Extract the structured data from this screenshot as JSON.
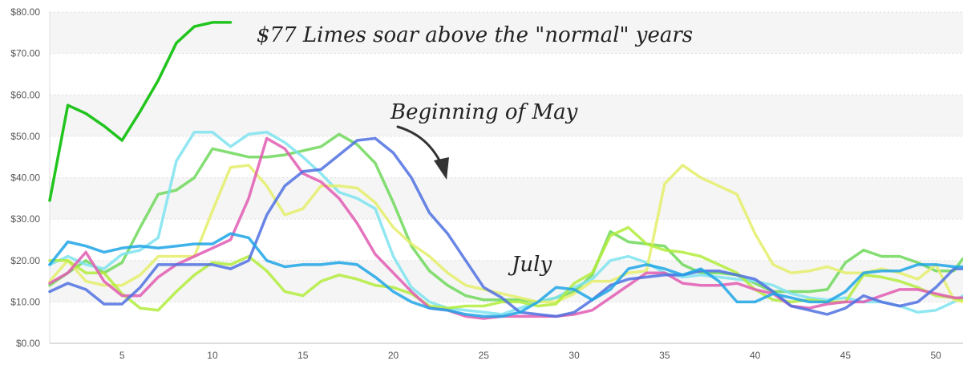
{
  "chart_data": {
    "type": "line",
    "title": "",
    "xlabel": "",
    "ylabel": "",
    "xlim": [
      1,
      51.5
    ],
    "ylim": [
      0,
      80
    ],
    "x_ticks": [
      5,
      10,
      15,
      20,
      25,
      30,
      35,
      40,
      45,
      50
    ],
    "y_ticks": [
      "$0.00",
      "$10.00",
      "$20.00",
      "$30.00",
      "$40.00",
      "$50.00",
      "$60.00",
      "$70.00",
      "$80.00"
    ],
    "grid": "horizontal dotted, alternating shaded bands",
    "legend": "none",
    "annotations": [
      {
        "text": "$77 Limes soar above the \"normal\" years",
        "x": 24,
        "y": 75
      },
      {
        "text": "Beginning of May",
        "x": 24,
        "y": 56
      },
      {
        "text": "July",
        "x": 28.5,
        "y": 18
      }
    ],
    "series": [
      {
        "color": "#22c41e",
        "x": [
          1,
          2,
          3,
          4,
          5,
          6,
          7,
          8,
          9,
          10,
          11
        ],
        "values": [
          34.5,
          57.5,
          55.5,
          52.5,
          49,
          56,
          63.5,
          72.5,
          76.5,
          77.5,
          77.5
        ]
      },
      {
        "color": "#6fd85a",
        "x": [
          1,
          2,
          3,
          4,
          5,
          6,
          7,
          8,
          9,
          10,
          11,
          12,
          13,
          14,
          15,
          16,
          17,
          18,
          19,
          20,
          21,
          22,
          23,
          24,
          25,
          26,
          27,
          28,
          29,
          30,
          31,
          32,
          33,
          34,
          35,
          36,
          37,
          38,
          39,
          40,
          41,
          42,
          43,
          44,
          45,
          46,
          47,
          48,
          49,
          50,
          51,
          51.5
        ],
        "values": [
          14,
          17,
          20,
          17,
          19.5,
          28,
          36,
          37,
          40,
          47,
          46,
          45,
          45,
          45.5,
          46.5,
          47.5,
          50.5,
          48,
          43.5,
          34,
          23.5,
          17.5,
          14,
          11.5,
          10.5,
          10.5,
          10.5,
          10,
          11,
          12.5,
          16.5,
          27,
          24.5,
          24,
          23.5,
          19,
          17,
          17,
          16.5,
          14.5,
          12.5,
          12.5,
          12.5,
          13,
          19.5,
          22.5,
          21,
          21,
          19.5,
          17.5,
          17.5,
          20.5
        ]
      },
      {
        "color": "#7ee3ee",
        "x": [
          1,
          2,
          3,
          4,
          5,
          6,
          7,
          8,
          9,
          10,
          11,
          12,
          13,
          14,
          15,
          16,
          17,
          18,
          19,
          20,
          21,
          22,
          23,
          24,
          25,
          26,
          27,
          28,
          29,
          30,
          31,
          32,
          33,
          34,
          35,
          36,
          37,
          38,
          39,
          40,
          41,
          42,
          43,
          44,
          45,
          46,
          47,
          48,
          49,
          50,
          51,
          51.5
        ],
        "values": [
          19,
          21,
          19,
          18,
          21.5,
          22.5,
          25.5,
          44,
          51,
          51,
          47.5,
          50.5,
          51,
          48.5,
          45,
          41,
          36.5,
          35,
          32.5,
          21,
          13.5,
          10,
          8.5,
          8,
          7.5,
          7,
          8.5,
          10,
          11,
          13.5,
          15.5,
          20,
          21,
          19.5,
          17,
          16,
          16.5,
          16,
          15.5,
          15,
          14,
          12,
          11,
          10.5,
          11,
          10,
          10,
          9,
          7.5,
          8,
          10,
          11.5
        ]
      },
      {
        "color": "#e4ef6a",
        "x": [
          1,
          2,
          3,
          4,
          5,
          6,
          7,
          8,
          9,
          10,
          11,
          12,
          13,
          14,
          15,
          16,
          17,
          18,
          19,
          20,
          21,
          22,
          23,
          24,
          25,
          26,
          27,
          28,
          29,
          30,
          31,
          32,
          33,
          34,
          35,
          36,
          37,
          38,
          39,
          40,
          41,
          42,
          43,
          44,
          45,
          46,
          47,
          48,
          49,
          50,
          51,
          51.5
        ],
        "values": [
          15,
          20,
          15,
          14,
          14,
          16.5,
          21,
          21,
          21,
          32,
          42.5,
          43,
          38,
          31,
          32.5,
          38,
          38,
          37.5,
          34,
          28,
          24,
          21,
          17,
          14,
          13,
          12,
          11,
          10,
          10,
          12,
          15,
          15,
          17,
          17.5,
          38.5,
          43,
          40,
          38,
          36,
          26.5,
          19,
          17,
          17.5,
          18.5,
          17,
          17,
          18,
          17,
          15.5,
          19,
          10.5,
          10
        ]
      },
      {
        "color": "#b2ec3c",
        "x": [
          1,
          2,
          3,
          4,
          5,
          6,
          7,
          8,
          9,
          10,
          11,
          12,
          13,
          14,
          15,
          16,
          17,
          18,
          19,
          20,
          21,
          22,
          23,
          24,
          25,
          26,
          27,
          28,
          29,
          30,
          31,
          32,
          33,
          34,
          35,
          36,
          37,
          38,
          39,
          40,
          41,
          42,
          43,
          44,
          45,
          46,
          47,
          48,
          49,
          50,
          51,
          51.5
        ],
        "values": [
          20,
          20,
          17,
          17,
          12,
          8.5,
          8,
          12.5,
          16.5,
          19.5,
          19,
          21,
          17.5,
          12.5,
          11.5,
          15,
          16.5,
          15.5,
          14,
          13.5,
          12,
          9,
          8.5,
          9,
          9,
          10,
          10,
          9,
          9.5,
          14.5,
          17,
          26,
          28,
          24,
          22.5,
          22,
          21,
          19,
          17,
          13,
          10.5,
          10,
          10.5,
          10,
          10,
          16.5,
          16,
          15,
          13.5,
          11.5,
          11,
          10.5
        ]
      },
      {
        "color": "#e05bb2",
        "x": [
          1,
          2,
          3,
          4,
          5,
          6,
          7,
          8,
          9,
          10,
          11,
          12,
          13,
          14,
          15,
          16,
          17,
          18,
          19,
          20,
          21,
          22,
          23,
          24,
          25,
          26,
          27,
          28,
          29,
          30,
          31,
          32,
          33,
          34,
          35,
          36,
          37,
          38,
          39,
          40,
          41,
          42,
          43,
          44,
          45,
          46,
          47,
          48,
          49,
          50,
          51,
          51.5
        ],
        "values": [
          14.5,
          17,
          22,
          15,
          11.5,
          11.5,
          16,
          19,
          21,
          23,
          25,
          35,
          49.5,
          47,
          41,
          39,
          35,
          29,
          21.5,
          17,
          12.5,
          8.5,
          8,
          6.5,
          6,
          6.5,
          6.5,
          6.5,
          6.5,
          7,
          8,
          11,
          14,
          17,
          17,
          14.5,
          14,
          14,
          14.5,
          13,
          12,
          9,
          8.5,
          9.5,
          10,
          10,
          11.5,
          13,
          13,
          12,
          11,
          11
        ]
      },
      {
        "color": "#4f70e0",
        "x": [
          1,
          2,
          3,
          4,
          5,
          6,
          7,
          8,
          9,
          10,
          11,
          12,
          13,
          14,
          15,
          16,
          17,
          18,
          19,
          20,
          21,
          22,
          23,
          24,
          25,
          26,
          27,
          28,
          29,
          30,
          31,
          32,
          33,
          34,
          35,
          36,
          37,
          38,
          39,
          40,
          41,
          42,
          43,
          44,
          45,
          46,
          47,
          48,
          49,
          50,
          51,
          51.5
        ],
        "values": [
          12.5,
          14.5,
          13,
          9.5,
          9.5,
          13.5,
          19,
          19,
          19,
          19,
          18,
          20,
          31,
          38,
          41.5,
          42,
          45.5,
          49,
          49.5,
          46,
          40,
          31.5,
          26.5,
          20,
          13.5,
          11,
          7.5,
          7,
          6.5,
          7.5,
          10.5,
          14,
          15.5,
          16,
          16.5,
          16.5,
          17.5,
          17.5,
          16.5,
          15.5,
          12.5,
          9,
          8,
          7,
          8.5,
          11.5,
          10,
          9,
          10,
          13.5,
          18,
          18
        ]
      },
      {
        "color": "#1fa4e6",
        "x": [
          1,
          2,
          3,
          4,
          5,
          6,
          7,
          8,
          9,
          10,
          11,
          12,
          13,
          14,
          15,
          16,
          17,
          18,
          19,
          20,
          21,
          22,
          23,
          24,
          25,
          26,
          27,
          28,
          29,
          30,
          31,
          32,
          33,
          34,
          35,
          36,
          37,
          38,
          39,
          40,
          41,
          42,
          43,
          44,
          45,
          46,
          47,
          48,
          49,
          50,
          51,
          51.5
        ],
        "values": [
          19,
          24.5,
          23.5,
          22,
          23,
          23.5,
          23,
          23.5,
          24,
          24,
          26.5,
          25.5,
          20,
          18.5,
          19,
          19,
          19.5,
          19,
          16,
          12.5,
          10,
          8.5,
          8,
          7,
          6.5,
          6.5,
          7.5,
          10,
          13.5,
          13,
          10.5,
          13,
          18,
          19,
          18,
          16.5,
          18,
          15,
          10,
          10,
          12,
          11,
          10,
          10,
          12.5,
          17,
          17.5,
          17.5,
          19,
          19,
          18.5,
          18.5
        ]
      }
    ]
  }
}
